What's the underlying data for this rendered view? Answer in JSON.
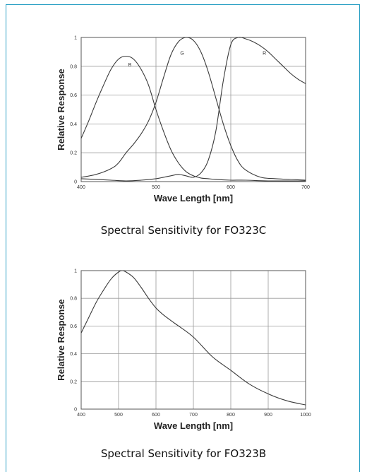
{
  "chart_data": [
    {
      "type": "line",
      "caption": "Spectral Sensitivity for FO323C",
      "xlabel": "Wave Length [nm]",
      "ylabel": "Relative Response",
      "xlim": [
        400,
        700
      ],
      "ylim": [
        0,
        1
      ],
      "xticks": [
        "400",
        "500",
        "600",
        "700"
      ],
      "yticks": [
        "0",
        "0.2",
        "0.4",
        "0.6",
        "0.8",
        "1"
      ],
      "grid": true,
      "series": [
        {
          "name": "B",
          "label_at": [
            465,
            0.8
          ],
          "x": [
            400,
            410,
            420,
            430,
            440,
            450,
            460,
            470,
            480,
            490,
            500,
            510,
            520,
            530,
            540,
            550,
            560,
            570,
            580,
            600,
            620,
            650,
            700
          ],
          "y": [
            0.3,
            0.42,
            0.55,
            0.67,
            0.78,
            0.85,
            0.87,
            0.85,
            0.78,
            0.67,
            0.5,
            0.35,
            0.22,
            0.13,
            0.07,
            0.04,
            0.025,
            0.02,
            0.015,
            0.01,
            0.01,
            0.005,
            0.005
          ]
        },
        {
          "name": "G",
          "label_at": [
            535,
            0.88
          ],
          "x": [
            400,
            420,
            440,
            450,
            460,
            470,
            480,
            490,
            500,
            510,
            520,
            530,
            540,
            550,
            560,
            570,
            580,
            590,
            600,
            610,
            620,
            640,
            660,
            700
          ],
          "y": [
            0.03,
            0.05,
            0.09,
            0.13,
            0.2,
            0.26,
            0.33,
            0.42,
            0.55,
            0.72,
            0.88,
            0.97,
            1.0,
            0.98,
            0.9,
            0.76,
            0.58,
            0.4,
            0.25,
            0.14,
            0.08,
            0.03,
            0.02,
            0.01
          ]
        },
        {
          "name": "R",
          "label_at": [
            645,
            0.88
          ],
          "x": [
            400,
            420,
            440,
            460,
            480,
            500,
            510,
            520,
            530,
            540,
            550,
            560,
            570,
            580,
            590,
            600,
            610,
            620,
            630,
            640,
            650,
            660,
            670,
            680,
            690,
            700
          ],
          "y": [
            0.02,
            0.015,
            0.01,
            0.005,
            0.01,
            0.02,
            0.03,
            0.04,
            0.05,
            0.04,
            0.03,
            0.06,
            0.15,
            0.35,
            0.7,
            0.95,
            1.0,
            0.99,
            0.97,
            0.94,
            0.9,
            0.85,
            0.8,
            0.75,
            0.71,
            0.68
          ]
        },
        {
          "name": "",
          "x": [
            400,
            450,
            500,
            550,
            600,
            650,
            700
          ],
          "y": [
            0.01,
            0.01,
            0.01,
            0.01,
            0.01,
            0.02,
            0.1
          ],
          "hidden_baseline": true
        }
      ]
    },
    {
      "type": "line",
      "caption": "Spectral Sensitivity for FO323B",
      "xlabel": "Wave Length [nm]",
      "ylabel": "Relative Response",
      "xlim": [
        400,
        1000
      ],
      "ylim": [
        0,
        1
      ],
      "xticks": [
        "400",
        "500",
        "600",
        "700",
        "800",
        "900",
        "1000"
      ],
      "yticks": [
        "0",
        "0.2",
        "0.4",
        "0.6",
        "0.8",
        "1"
      ],
      "grid": true,
      "series": [
        {
          "name": "",
          "x": [
            400,
            420,
            440,
            460,
            480,
            500,
            510,
            520,
            540,
            560,
            580,
            600,
            620,
            650,
            700,
            750,
            800,
            850,
            900,
            950,
            1000
          ],
          "y": [
            0.55,
            0.66,
            0.77,
            0.86,
            0.94,
            0.99,
            1.0,
            0.99,
            0.95,
            0.88,
            0.8,
            0.73,
            0.68,
            0.62,
            0.52,
            0.38,
            0.28,
            0.18,
            0.11,
            0.06,
            0.03
          ]
        }
      ]
    }
  ]
}
